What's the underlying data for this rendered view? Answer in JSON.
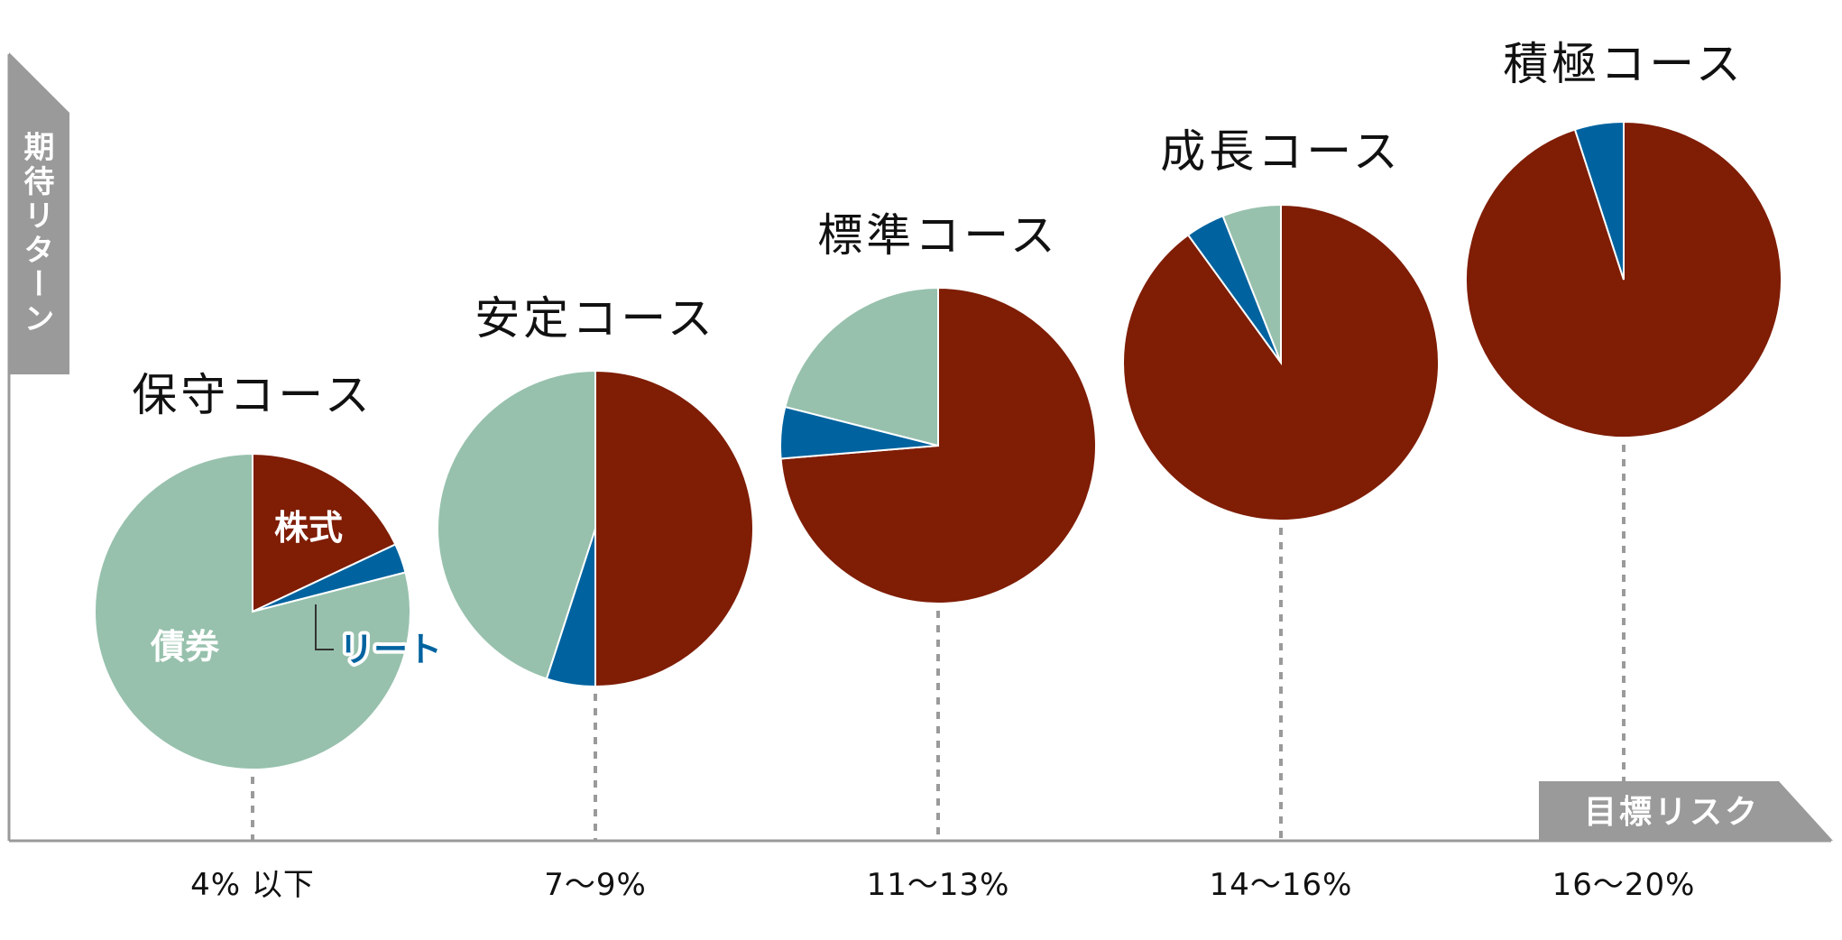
{
  "colors": {
    "stocks": "#7f1d05",
    "reit": "#00639f",
    "bonds": "#97c1ad",
    "axis": "#9a9a9a",
    "dotted": "#9a9a9a",
    "text": "#111111"
  },
  "axes": {
    "y_label": "期待リターン",
    "x_label": "目標リスク"
  },
  "slice_labels": {
    "stocks": "株式",
    "bonds": "債券",
    "reit": "リート"
  },
  "chart_data": {
    "type": "pie",
    "series_names": [
      "株式",
      "リート",
      "債券"
    ],
    "courses": [
      {
        "name": "保守コース",
        "risk": "4% 以下",
        "stocks": 18,
        "reit": 3,
        "bonds": 79
      },
      {
        "name": "安定コース",
        "risk": "7〜9%",
        "stocks": 50,
        "reit": 5,
        "bonds": 45
      },
      {
        "name": "標準コース",
        "risk": "11〜13%",
        "stocks": 70,
        "reit": 5,
        "bonds": 20
      },
      {
        "name": "成長コース",
        "risk": "14〜16%",
        "stocks": 90,
        "reit": 4,
        "bonds": 6
      },
      {
        "name": "積極コース",
        "risk": "16〜20%",
        "stocks": 95,
        "reit": 5,
        "bonds": 0
      }
    ]
  }
}
